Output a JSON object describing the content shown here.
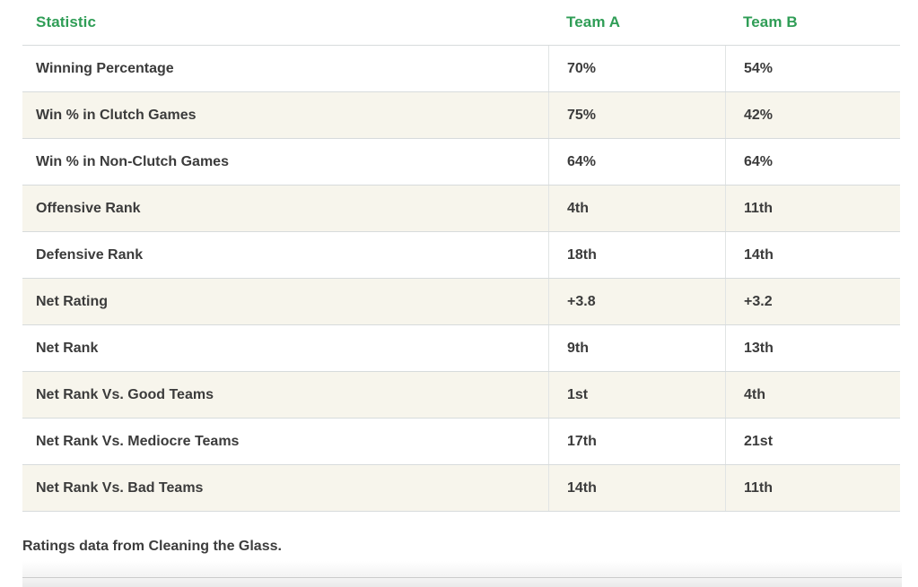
{
  "chart_data": {
    "type": "table",
    "columns": [
      "Statistic",
      "Team A",
      "Team B"
    ],
    "rows": [
      {
        "label": "Winning Percentage",
        "team_a": "70%",
        "team_b": "54%"
      },
      {
        "label": "Win % in Clutch Games",
        "team_a": "75%",
        "team_b": "42%"
      },
      {
        "label": "Win % in Non-Clutch Games",
        "team_a": "64%",
        "team_b": "64%"
      },
      {
        "label": "Offensive Rank",
        "team_a": "4th",
        "team_b": "11th"
      },
      {
        "label": "Defensive Rank",
        "team_a": "18th",
        "team_b": "14th"
      },
      {
        "label": "Net Rating",
        "team_a": "+3.8",
        "team_b": "+3.2"
      },
      {
        "label": "Net Rank",
        "team_a": "9th",
        "team_b": "13th"
      },
      {
        "label": "Net Rank Vs. Good Teams",
        "team_a": "1st",
        "team_b": "4th"
      },
      {
        "label": "Net Rank Vs. Mediocre Teams",
        "team_a": "17th",
        "team_b": "21st"
      },
      {
        "label": "Net Rank Vs. Bad Teams",
        "team_a": "14th",
        "team_b": "11th"
      }
    ],
    "caption": "Ratings data from Cleaning the Glass.",
    "colors": {
      "header_text": "#2f9d56",
      "alt_row_bg": "#f7f5ec",
      "border": "#d7dbdc",
      "body_text": "#3b3b3b"
    },
    "layout_hints": {
      "alternating_rows": true,
      "column_dividers": "data columns only"
    }
  }
}
